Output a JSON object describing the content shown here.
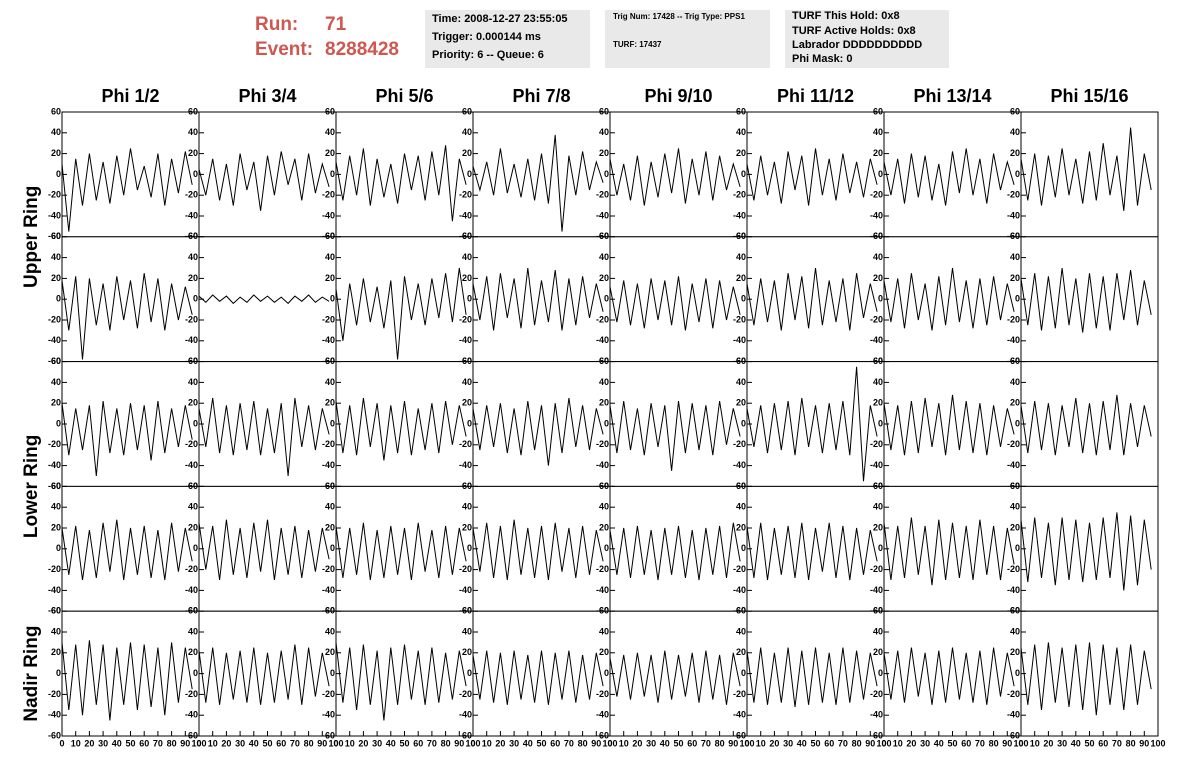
{
  "header": {
    "run_label": "Run:",
    "run": "71",
    "event_label": "Event:",
    "event": "8288428",
    "time": "Time: 2008-12-27 23:55:05",
    "trigger": "Trigger: 0.000144 ms",
    "priority": "Priority: 6 -- Queue: 6",
    "trig_num": "Trig Num: 17428 -- Trig Type: PPS1",
    "turf": "TURF: 17437",
    "turf_hold": "TURF This Hold: 0x8",
    "turf_active": "TURF Active Holds: 0x8",
    "labrador": "Labrador DDDDDDDDDD",
    "phi_mask": "Phi Mask: 0"
  },
  "chart_data": {
    "type": "line",
    "columns": [
      "Phi 1/2",
      "Phi 3/4",
      "Phi 5/6",
      "Phi 7/8",
      "Phi 9/10",
      "Phi 11/12",
      "Phi 13/14",
      "Phi 15/16"
    ],
    "row_labels": [
      "Upper Ring",
      null,
      "Lower Ring",
      null,
      "Nadir Ring"
    ],
    "color": "#000000",
    "xlim": [
      0,
      100
    ],
    "xticks": [
      0,
      10,
      20,
      30,
      40,
      50,
      60,
      70,
      80,
      90,
      100
    ],
    "ylim": [
      -60,
      60
    ],
    "yticks": [
      -60,
      -40,
      -20,
      0,
      20,
      40,
      60
    ],
    "x": [
      0,
      5,
      10,
      15,
      20,
      25,
      30,
      35,
      40,
      45,
      50,
      55,
      60,
      65,
      70,
      75,
      80,
      85,
      90,
      95
    ],
    "series": [
      {
        "values": [
          10,
          -55,
          15,
          -30,
          20,
          -25,
          12,
          -28,
          18,
          -20,
          25,
          -15,
          8,
          -22,
          20,
          -30,
          15,
          -18,
          22,
          -10
        ]
      },
      {
        "values": [
          5,
          -20,
          15,
          -25,
          10,
          -30,
          20,
          -15,
          12,
          -35,
          18,
          -20,
          22,
          -10,
          15,
          -25,
          20,
          -18,
          10,
          -12
        ]
      },
      {
        "values": [
          12,
          -25,
          18,
          -20,
          25,
          -30,
          15,
          -22,
          10,
          -28,
          20,
          -15,
          18,
          -25,
          22,
          -20,
          28,
          -45,
          15,
          -10
        ]
      },
      {
        "values": [
          8,
          -15,
          12,
          -20,
          25,
          -18,
          10,
          -22,
          15,
          -25,
          20,
          -28,
          38,
          -55,
          18,
          -20,
          22,
          -15,
          12,
          -8
        ]
      },
      {
        "values": [
          15,
          -20,
          10,
          -25,
          18,
          -30,
          12,
          -22,
          20,
          -18,
          25,
          -28,
          15,
          -20,
          22,
          -25,
          18,
          -15,
          10,
          -12
        ]
      },
      {
        "values": [
          10,
          -25,
          18,
          -20,
          12,
          -28,
          22,
          -15,
          18,
          -30,
          25,
          -20,
          15,
          -25,
          20,
          -18,
          12,
          -22,
          15,
          -10
        ]
      },
      {
        "values": [
          12,
          -20,
          15,
          -28,
          20,
          -22,
          18,
          -25,
          10,
          -30,
          22,
          -18,
          25,
          -20,
          15,
          -28,
          20,
          -15,
          12,
          -10
        ]
      },
      {
        "values": [
          15,
          -25,
          20,
          -30,
          18,
          -22,
          25,
          -20,
          15,
          -28,
          22,
          -25,
          30,
          -20,
          18,
          -35,
          45,
          -30,
          20,
          -15
        ]
      },
      {
        "values": [
          18,
          -30,
          22,
          -58,
          20,
          -25,
          15,
          -30,
          22,
          -20,
          18,
          -28,
          25,
          -22,
          20,
          -30,
          15,
          -20,
          12,
          -15
        ]
      },
      {
        "values": [
          3,
          -3,
          4,
          -2,
          3,
          -4,
          2,
          -3,
          4,
          -2,
          3,
          -3,
          2,
          -4,
          3,
          -2,
          4,
          -3,
          2,
          -2
        ]
      },
      {
        "values": [
          10,
          -40,
          15,
          -25,
          20,
          -22,
          12,
          -28,
          18,
          -58,
          22,
          -20,
          15,
          -25,
          20,
          -18,
          25,
          -22,
          30,
          -15
        ]
      },
      {
        "values": [
          15,
          -20,
          22,
          -30,
          25,
          -18,
          20,
          -28,
          30,
          -25,
          18,
          -22,
          28,
          -30,
          20,
          -25,
          22,
          -18,
          15,
          -12
        ]
      },
      {
        "values": [
          12,
          -22,
          18,
          -25,
          15,
          -28,
          20,
          -20,
          18,
          -25,
          22,
          -30,
          15,
          -22,
          20,
          -28,
          18,
          -20,
          12,
          -15
        ]
      },
      {
        "values": [
          15,
          -25,
          20,
          -22,
          18,
          -30,
          25,
          -20,
          22,
          -28,
          30,
          -25,
          18,
          -22,
          20,
          -30,
          25,
          -18,
          15,
          -12
        ]
      },
      {
        "values": [
          18,
          -22,
          20,
          -28,
          25,
          -20,
          15,
          -30,
          22,
          -25,
          30,
          -22,
          18,
          -28,
          20,
          -25,
          22,
          -20,
          15,
          -12
        ]
      },
      {
        "values": [
          20,
          -25,
          25,
          -30,
          22,
          -28,
          30,
          -25,
          20,
          -32,
          25,
          -28,
          22,
          -30,
          25,
          -20,
          28,
          -25,
          18,
          -15
        ]
      },
      {
        "values": [
          20,
          -30,
          15,
          -25,
          18,
          -50,
          22,
          -28,
          15,
          -30,
          20,
          -25,
          18,
          -35,
          22,
          -28,
          15,
          -22,
          18,
          -15
        ]
      },
      {
        "values": [
          15,
          -22,
          25,
          -28,
          18,
          -30,
          20,
          -25,
          22,
          -30,
          15,
          -28,
          20,
          -50,
          25,
          -22,
          18,
          -25,
          15,
          -10
        ]
      },
      {
        "values": [
          22,
          -28,
          18,
          -30,
          25,
          -22,
          20,
          -35,
          18,
          -28,
          22,
          -30,
          15,
          -25,
          20,
          -28,
          22,
          -20,
          18,
          -12
        ]
      },
      {
        "values": [
          15,
          -25,
          18,
          -22,
          20,
          -28,
          15,
          -30,
          22,
          -25,
          18,
          -40,
          20,
          -28,
          25,
          -22,
          18,
          -25,
          15,
          -10
        ]
      },
      {
        "values": [
          18,
          -28,
          22,
          -25,
          15,
          -30,
          20,
          -22,
          18,
          -45,
          22,
          -28,
          20,
          -25,
          18,
          -30,
          22,
          -20,
          15,
          -12
        ]
      },
      {
        "values": [
          15,
          -22,
          18,
          -28,
          20,
          -25,
          22,
          -30,
          25,
          -22,
          18,
          -28,
          20,
          -25,
          22,
          -30,
          55,
          -55,
          18,
          -12
        ]
      },
      {
        "values": [
          20,
          -25,
          18,
          -30,
          22,
          -28,
          25,
          -22,
          20,
          -30,
          28,
          -25,
          22,
          -28,
          20,
          -30,
          18,
          -22,
          15,
          -10
        ]
      },
      {
        "values": [
          18,
          -28,
          22,
          -25,
          20,
          -30,
          18,
          -22,
          25,
          -28,
          20,
          -30,
          22,
          -25,
          28,
          -30,
          20,
          -22,
          18,
          -12
        ]
      },
      {
        "values": [
          20,
          -25,
          22,
          -30,
          18,
          -28,
          25,
          -22,
          28,
          -30,
          20,
          -25,
          22,
          -28,
          18,
          -30,
          25,
          -22,
          20,
          -12
        ]
      },
      {
        "values": [
          25,
          -20,
          22,
          -30,
          28,
          -25,
          20,
          -28,
          25,
          -22,
          28,
          -30,
          20,
          -25,
          22,
          -28,
          18,
          -22,
          20,
          -10
        ]
      },
      {
        "values": [
          22,
          -28,
          20,
          -25,
          25,
          -30,
          18,
          -28,
          22,
          -25,
          20,
          -30,
          25,
          -22,
          18,
          -28,
          22,
          -25,
          20,
          -12
        ]
      },
      {
        "values": [
          20,
          -22,
          25,
          -28,
          22,
          -30,
          28,
          -25,
          20,
          -28,
          22,
          -30,
          25,
          -22,
          20,
          -28,
          22,
          -25,
          18,
          -12
        ]
      },
      {
        "values": [
          18,
          -25,
          20,
          -28,
          22,
          -25,
          18,
          -30,
          20,
          -25,
          22,
          -28,
          18,
          -30,
          20,
          -25,
          22,
          -28,
          25,
          -12
        ]
      },
      {
        "values": [
          22,
          -28,
          25,
          -30,
          20,
          -25,
          22,
          -28,
          25,
          -30,
          20,
          -22,
          25,
          -28,
          22,
          -30,
          20,
          -25,
          18,
          -12
        ]
      },
      {
        "values": [
          25,
          -30,
          22,
          -28,
          30,
          -25,
          22,
          -35,
          28,
          -30,
          25,
          -28,
          22,
          -30,
          28,
          -25,
          22,
          -30,
          20,
          -15
        ]
      },
      {
        "values": [
          28,
          -32,
          30,
          -28,
          25,
          -35,
          30,
          -30,
          28,
          -32,
          25,
          -30,
          30,
          -28,
          35,
          -40,
          32,
          -35,
          28,
          -20
        ]
      },
      {
        "values": [
          30,
          -35,
          28,
          -40,
          32,
          -30,
          28,
          -45,
          25,
          -30,
          30,
          -35,
          28,
          -32,
          25,
          -40,
          30,
          -28,
          25,
          -15
        ]
      },
      {
        "values": [
          22,
          -28,
          25,
          -30,
          20,
          -25,
          22,
          -28,
          25,
          -30,
          20,
          -28,
          22,
          -25,
          28,
          -30,
          25,
          -22,
          20,
          -12
        ]
      },
      {
        "values": [
          30,
          -28,
          25,
          -35,
          28,
          -30,
          22,
          -45,
          25,
          -30,
          28,
          -25,
          22,
          -30,
          25,
          -28,
          20,
          -25,
          22,
          -12
        ]
      },
      {
        "values": [
          18,
          -25,
          22,
          -28,
          20,
          -30,
          22,
          -25,
          18,
          -28,
          22,
          -30,
          20,
          -25,
          22,
          -28,
          18,
          -25,
          20,
          -12
        ]
      },
      {
        "values": [
          15,
          -22,
          18,
          -25,
          20,
          -22,
          18,
          -28,
          22,
          -25,
          18,
          -22,
          20,
          -28,
          22,
          -25,
          18,
          -30,
          20,
          -12
        ]
      },
      {
        "values": [
          22,
          -28,
          25,
          -30,
          20,
          -28,
          25,
          -32,
          22,
          -30,
          25,
          -28,
          20,
          -30,
          25,
          -28,
          22,
          -25,
          20,
          -12
        ]
      },
      {
        "values": [
          20,
          -25,
          22,
          -28,
          25,
          -22,
          20,
          -30,
          22,
          -28,
          25,
          -25,
          20,
          -28,
          22,
          -30,
          25,
          -22,
          20,
          -12
        ]
      },
      {
        "values": [
          25,
          -30,
          28,
          -35,
          30,
          -28,
          25,
          -32,
          28,
          -35,
          30,
          -40,
          28,
          -30,
          25,
          -35,
          28,
          -30,
          22,
          -15
        ]
      }
    ]
  }
}
